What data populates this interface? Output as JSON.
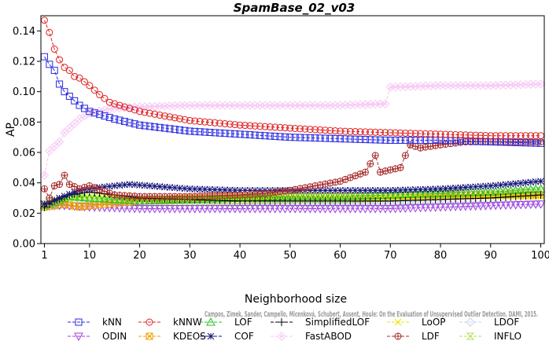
{
  "chart_data": {
    "type": "line",
    "title": "SpamBase_02_v03",
    "xlabel": "Neighborhood size",
    "ylabel": "AP",
    "xlim": [
      1,
      100
    ],
    "ylim": [
      0.0,
      0.15
    ],
    "xticks": [
      "1",
      "10",
      "20",
      "30",
      "40",
      "50",
      "60",
      "70",
      "80",
      "90",
      "100"
    ],
    "yticks": [
      "0.00",
      "0.02",
      "0.04",
      "0.06",
      "0.08",
      "0.10",
      "0.12",
      "0.14"
    ],
    "grid": false,
    "legend_position": "bottom",
    "note": "Campos, Zimek, Sander, Campello, Micenková, Schubert, Assent, Houle: On the Evaluation of Unsupervised Outlier Detection. DAMI, 2015.",
    "series": [
      {
        "name": "kNN",
        "color": "#2929e0",
        "marker": "square",
        "anchors": [
          [
            1,
            0.123
          ],
          [
            2,
            0.118
          ],
          [
            3,
            0.114
          ],
          [
            4,
            0.105
          ],
          [
            5,
            0.1
          ],
          [
            6,
            0.097
          ],
          [
            7,
            0.094
          ],
          [
            8,
            0.091
          ],
          [
            10,
            0.087
          ],
          [
            12,
            0.085
          ],
          [
            15,
            0.082
          ],
          [
            20,
            0.078
          ],
          [
            25,
            0.076
          ],
          [
            30,
            0.074
          ],
          [
            40,
            0.072
          ],
          [
            50,
            0.07
          ],
          [
            60,
            0.069
          ],
          [
            70,
            0.068
          ],
          [
            80,
            0.068
          ],
          [
            90,
            0.067
          ],
          [
            100,
            0.066
          ]
        ]
      },
      {
        "name": "kNNW",
        "color": "#e02020",
        "marker": "circle",
        "anchors": [
          [
            1,
            0.147
          ],
          [
            2,
            0.139
          ],
          [
            3,
            0.128
          ],
          [
            4,
            0.121
          ],
          [
            5,
            0.116
          ],
          [
            6,
            0.114
          ],
          [
            7,
            0.11
          ],
          [
            8,
            0.109
          ],
          [
            10,
            0.104
          ],
          [
            12,
            0.098
          ],
          [
            14,
            0.093
          ],
          [
            17,
            0.09
          ],
          [
            20,
            0.087
          ],
          [
            25,
            0.084
          ],
          [
            30,
            0.081
          ],
          [
            40,
            0.078
          ],
          [
            50,
            0.076
          ],
          [
            60,
            0.074
          ],
          [
            70,
            0.073
          ],
          [
            80,
            0.072
          ],
          [
            90,
            0.071
          ],
          [
            100,
            0.071
          ]
        ]
      },
      {
        "name": "LOF",
        "color": "#22c022",
        "marker": "triangle",
        "anchors": [
          [
            1,
            0.025
          ],
          [
            3,
            0.027
          ],
          [
            6,
            0.031
          ],
          [
            10,
            0.03
          ],
          [
            20,
            0.028
          ],
          [
            30,
            0.029
          ],
          [
            40,
            0.03
          ],
          [
            50,
            0.031
          ],
          [
            60,
            0.031
          ],
          [
            70,
            0.032
          ],
          [
            80,
            0.033
          ],
          [
            90,
            0.034
          ],
          [
            100,
            0.036
          ]
        ]
      },
      {
        "name": "SimplifiedLOF",
        "color": "#000000",
        "marker": "plus",
        "anchors": [
          [
            1,
            0.024
          ],
          [
            3,
            0.028
          ],
          [
            6,
            0.032
          ],
          [
            10,
            0.034
          ],
          [
            15,
            0.032
          ],
          [
            20,
            0.03
          ],
          [
            30,
            0.029
          ],
          [
            40,
            0.028
          ],
          [
            50,
            0.028
          ],
          [
            60,
            0.028
          ],
          [
            70,
            0.028
          ],
          [
            80,
            0.029
          ],
          [
            90,
            0.03
          ],
          [
            100,
            0.032
          ]
        ]
      },
      {
        "name": "LoOP",
        "color": "#e8e800",
        "marker": "x",
        "anchors": [
          [
            1,
            0.026
          ],
          [
            5,
            0.03
          ],
          [
            10,
            0.031
          ],
          [
            20,
            0.03
          ],
          [
            30,
            0.03
          ],
          [
            40,
            0.03
          ],
          [
            50,
            0.031
          ],
          [
            60,
            0.031
          ],
          [
            70,
            0.031
          ],
          [
            80,
            0.031
          ],
          [
            90,
            0.031
          ],
          [
            100,
            0.031
          ]
        ]
      },
      {
        "name": "LDOF",
        "color": "#c6d0f4",
        "marker": "diamond",
        "anchors": [
          [
            1,
            0.024
          ],
          [
            5,
            0.025
          ],
          [
            10,
            0.025
          ],
          [
            20,
            0.025
          ],
          [
            30,
            0.025
          ],
          [
            40,
            0.025
          ],
          [
            50,
            0.026
          ],
          [
            60,
            0.026
          ],
          [
            70,
            0.026
          ],
          [
            80,
            0.026
          ],
          [
            90,
            0.026
          ],
          [
            100,
            0.026
          ]
        ]
      },
      {
        "name": "ODIN",
        "color": "#a23ee0",
        "marker": "triangle-down",
        "anchors": [
          [
            1,
            0.026
          ],
          [
            5,
            0.025
          ],
          [
            10,
            0.024
          ],
          [
            20,
            0.023
          ],
          [
            30,
            0.023
          ],
          [
            40,
            0.023
          ],
          [
            50,
            0.023
          ],
          [
            60,
            0.023
          ],
          [
            70,
            0.023
          ],
          [
            80,
            0.024
          ],
          [
            90,
            0.025
          ],
          [
            100,
            0.026
          ]
        ]
      },
      {
        "name": "KDEOS",
        "color": "#f0a000",
        "marker": "square-x",
        "anchors": [
          [
            1,
            0.024
          ],
          [
            5,
            0.026
          ],
          [
            8,
            0.024
          ],
          [
            10,
            0.025
          ],
          [
            20,
            0.028
          ],
          [
            30,
            0.03
          ],
          [
            40,
            0.031
          ],
          [
            50,
            0.031
          ],
          [
            60,
            0.031
          ],
          [
            70,
            0.031
          ],
          [
            80,
            0.032
          ],
          [
            90,
            0.032
          ],
          [
            100,
            0.032
          ]
        ]
      },
      {
        "name": "COF",
        "color": "#14147a",
        "marker": "star",
        "anchors": [
          [
            1,
            0.026
          ],
          [
            4,
            0.03
          ],
          [
            8,
            0.035
          ],
          [
            12,
            0.037
          ],
          [
            18,
            0.039
          ],
          [
            22,
            0.038
          ],
          [
            30,
            0.036
          ],
          [
            40,
            0.035
          ],
          [
            50,
            0.035
          ],
          [
            60,
            0.035
          ],
          [
            70,
            0.035
          ],
          [
            80,
            0.036
          ],
          [
            90,
            0.038
          ],
          [
            100,
            0.041
          ]
        ]
      },
      {
        "name": "FastABOD",
        "color": "#f6c8f4",
        "marker": "diamond-x",
        "anchors": [
          [
            1,
            0.045
          ],
          [
            2,
            0.061
          ],
          [
            3,
            0.064
          ],
          [
            4,
            0.067
          ],
          [
            5,
            0.073
          ],
          [
            6,
            0.076
          ],
          [
            7,
            0.079
          ],
          [
            8,
            0.082
          ],
          [
            10,
            0.086
          ],
          [
            15,
            0.089
          ],
          [
            20,
            0.09
          ],
          [
            30,
            0.091
          ],
          [
            40,
            0.091
          ],
          [
            50,
            0.091
          ],
          [
            60,
            0.091
          ],
          [
            69,
            0.092
          ],
          [
            70,
            0.103
          ],
          [
            80,
            0.104
          ],
          [
            90,
            0.104
          ],
          [
            100,
            0.105
          ]
        ]
      },
      {
        "name": "LDF",
        "color": "#a82c2c",
        "marker": "circle-plus",
        "anchors": [
          [
            1,
            0.036
          ],
          [
            2,
            0.03
          ],
          [
            3,
            0.038
          ],
          [
            4,
            0.039
          ],
          [
            5,
            0.045
          ],
          [
            6,
            0.039
          ],
          [
            8,
            0.036
          ],
          [
            10,
            0.038
          ],
          [
            15,
            0.032
          ],
          [
            20,
            0.031
          ],
          [
            30,
            0.031
          ],
          [
            40,
            0.032
          ],
          [
            45,
            0.033
          ],
          [
            50,
            0.035
          ],
          [
            55,
            0.038
          ],
          [
            60,
            0.041
          ],
          [
            65,
            0.047
          ],
          [
            67,
            0.058
          ],
          [
            68,
            0.047
          ],
          [
            72,
            0.05
          ],
          [
            73,
            0.058
          ],
          [
            74,
            0.065
          ],
          [
            76,
            0.063
          ],
          [
            80,
            0.065
          ],
          [
            85,
            0.067
          ],
          [
            90,
            0.067
          ],
          [
            100,
            0.067
          ]
        ]
      },
      {
        "name": "INFLO",
        "color": "#b4e058",
        "marker": "hourglass",
        "anchors": [
          [
            1,
            0.026
          ],
          [
            5,
            0.029
          ],
          [
            10,
            0.029
          ],
          [
            20,
            0.028
          ],
          [
            30,
            0.028
          ],
          [
            40,
            0.028
          ],
          [
            50,
            0.029
          ],
          [
            60,
            0.029
          ],
          [
            70,
            0.03
          ],
          [
            80,
            0.031
          ],
          [
            90,
            0.033
          ],
          [
            100,
            0.035
          ]
        ]
      }
    ]
  }
}
